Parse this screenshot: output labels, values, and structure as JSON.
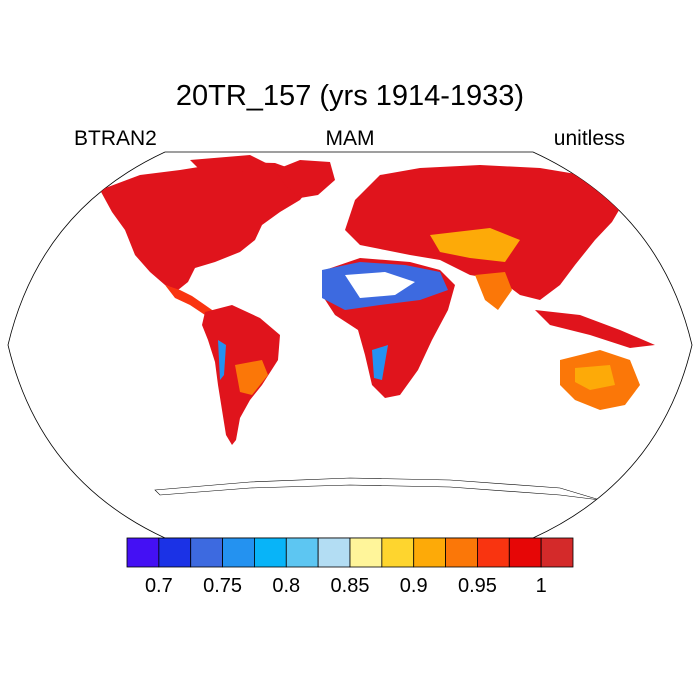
{
  "title": "20TR_157 (yrs 1914-1933)",
  "left_label": "BTRAN2",
  "center_label": "MAM",
  "right_label": "unitless",
  "colorbar": {
    "colors": [
      "#4410f4",
      "#1b32e6",
      "#3d6ae0",
      "#2492f0",
      "#08b4f8",
      "#5dc6f2",
      "#b3ddf3",
      "#fff59a",
      "#fed52e",
      "#fdaa08",
      "#fb7708",
      "#f93410",
      "#e60606",
      "#d42a2a"
    ],
    "tick_labels": [
      "0.7",
      "0.75",
      "0.8",
      "0.85",
      "0.9",
      "0.95",
      "1"
    ],
    "tick_values": [
      0.7,
      0.75,
      0.8,
      0.85,
      0.9,
      0.95,
      1
    ]
  }
}
